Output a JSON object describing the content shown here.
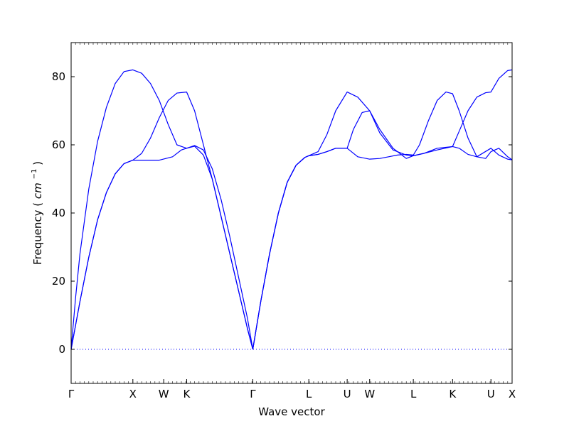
{
  "chart_data": {
    "type": "line",
    "title": "",
    "xlabel": "Wave vector",
    "ylabel": "Frequency (cm⁻¹)",
    "ylabel_text": "Frequency",
    "ylabel_unit_base": "cm",
    "ylabel_unit_exp": "−1",
    "ylim": [
      -10,
      90
    ],
    "xlim": [
      0,
      1
    ],
    "yticks": [
      0,
      20,
      40,
      60,
      80
    ],
    "xticks": [
      {
        "label": "Γ",
        "x": 0.0
      },
      {
        "label": "X",
        "x": 0.14
      },
      {
        "label": "W",
        "x": 0.21
      },
      {
        "label": "K",
        "x": 0.262
      },
      {
        "label": "Γ",
        "x": 0.412
      },
      {
        "label": "L",
        "x": 0.539
      },
      {
        "label": "U",
        "x": 0.626
      },
      {
        "label": "W",
        "x": 0.677
      },
      {
        "label": "L",
        "x": 0.776
      },
      {
        "label": "K",
        "x": 0.865
      },
      {
        "label": "U",
        "x": 0.952
      },
      {
        "label": "X",
        "x": 1.0
      }
    ],
    "zero_line": 0,
    "line_color": "#0000ff",
    "series": [
      {
        "values_x": [
          0,
          0.01,
          0.02,
          0.04,
          0.06,
          0.08,
          0.1,
          0.12,
          0.14,
          0.16,
          0.18,
          0.2,
          0.22,
          0.24,
          0.262,
          0.28,
          0.3,
          0.32,
          0.34,
          0.36,
          0.38,
          0.4,
          0.412
        ],
        "values_y": [
          0,
          15,
          28,
          47,
          61,
          71,
          78,
          81.5,
          82,
          81,
          78,
          73,
          66,
          60,
          59,
          59.6,
          57,
          50,
          39,
          28,
          17,
          6,
          0
        ]
      },
      {
        "values_x": [
          0,
          0.01,
          0.02,
          0.04,
          0.06,
          0.08,
          0.1,
          0.12,
          0.14,
          0.17,
          0.2,
          0.23,
          0.25,
          0.262,
          0.28,
          0.3,
          0.32,
          0.34,
          0.36,
          0.38,
          0.4,
          0.412
        ],
        "values_y": [
          0,
          7,
          14,
          27,
          38,
          46,
          51.5,
          54.5,
          55.5,
          55.5,
          55.5,
          56.5,
          58.5,
          59,
          59.8,
          58.5,
          53,
          44,
          33,
          21,
          9,
          0
        ]
      },
      {
        "values_x": [
          0,
          0.01,
          0.02,
          0.04,
          0.06,
          0.08,
          0.1,
          0.12,
          0.14,
          0.16,
          0.18,
          0.2,
          0.22,
          0.24,
          0.262,
          0.28,
          0.3,
          0.32,
          0.34,
          0.36,
          0.38,
          0.4,
          0.412
        ],
        "values_y": [
          0,
          7,
          14,
          27,
          38,
          46,
          51.5,
          54.5,
          55.5,
          57.5,
          62,
          68,
          73,
          75.2,
          75.5,
          70,
          60,
          50,
          39,
          28,
          17,
          6,
          0
        ]
      },
      {
        "values_x": [
          0.412,
          0.43,
          0.45,
          0.47,
          0.49,
          0.51,
          0.53,
          0.539,
          0.56,
          0.58,
          0.6,
          0.626,
          0.64,
          0.66,
          0.677,
          0.7,
          0.73,
          0.76,
          0.776,
          0.8,
          0.83,
          0.865,
          0.88,
          0.9,
          0.92,
          0.952,
          0.97,
          0.99,
          1.0
        ],
        "values_y": [
          0,
          14,
          28,
          40,
          49,
          54,
          56.3,
          56.8,
          57.2,
          58,
          59,
          59,
          64.5,
          69.5,
          70,
          64.5,
          59,
          56,
          56.8,
          57.5,
          59,
          59.5,
          59,
          57.2,
          56.5,
          59,
          57,
          55.8,
          55.6
        ]
      },
      {
        "values_x": [
          0.412,
          0.43,
          0.45,
          0.47,
          0.49,
          0.51,
          0.53,
          0.539,
          0.56,
          0.58,
          0.6,
          0.626,
          0.65,
          0.677,
          0.7,
          0.73,
          0.76,
          0.776,
          0.8,
          0.83,
          0.865,
          0.88,
          0.9,
          0.92,
          0.94,
          0.952,
          0.97,
          0.99,
          1.0
        ],
        "values_y": [
          0,
          14,
          28,
          40,
          49,
          54,
          56.3,
          56.8,
          58,
          63,
          70,
          75.5,
          74,
          70,
          63.5,
          58.5,
          57,
          56.8,
          57.5,
          58.5,
          59.5,
          64,
          70,
          74,
          75.3,
          75.5,
          79.5,
          81.8,
          82
        ]
      },
      {
        "values_x": [
          0.412,
          0.43,
          0.45,
          0.47,
          0.49,
          0.51,
          0.53,
          0.539,
          0.56,
          0.58,
          0.6,
          0.626,
          0.65,
          0.677,
          0.7,
          0.72,
          0.74,
          0.76,
          0.776,
          0.79,
          0.81,
          0.83,
          0.85,
          0.865,
          0.88,
          0.9,
          0.92,
          0.94,
          0.952,
          0.97,
          0.99,
          1.0
        ],
        "values_y": [
          0,
          14,
          28,
          40,
          49,
          54,
          56.3,
          56.8,
          57.2,
          58,
          59,
          59,
          56.5,
          55.8,
          56,
          56.5,
          57,
          57.2,
          57,
          60,
          67,
          73,
          75.5,
          75,
          70,
          62,
          56.5,
          56,
          58,
          59,
          56.5,
          55.6
        ]
      }
    ]
  }
}
